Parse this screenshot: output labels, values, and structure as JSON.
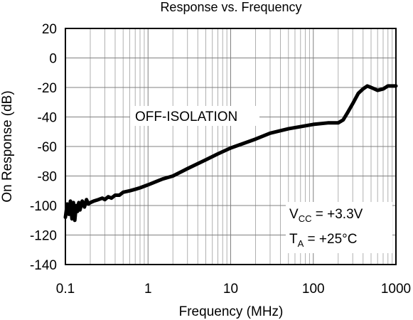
{
  "chart_data": {
    "type": "line",
    "title": "Response vs. Frequency",
    "xlabel": "Frequency (MHz)",
    "ylabel": "On Response (dB)",
    "xscale": "log",
    "xlim": [
      0.1,
      1000
    ],
    "ylim": [
      -140,
      20
    ],
    "xticks": [
      0.1,
      1,
      10,
      100,
      1000
    ],
    "xtick_labels": [
      "0.1",
      "1",
      "10",
      "100",
      "1000"
    ],
    "yticks": [
      20,
      0,
      -20,
      -40,
      -60,
      -80,
      -100,
      -120,
      -140
    ],
    "ytick_labels": [
      "20",
      "0",
      "-20",
      "-40",
      "-60",
      "-80",
      "-100",
      "-120",
      "-140"
    ],
    "grid": true,
    "annotations": {
      "series_label": "OFF-ISOLATION",
      "vcc_main": "V",
      "vcc_sub": "CC",
      "vcc_value": " = +3.3V",
      "ta_main": "T",
      "ta_sub": "A",
      "ta_value": " = +25°C"
    },
    "series": [
      {
        "x": [
          0.1,
          0.105,
          0.11,
          0.115,
          0.12,
          0.125,
          0.13,
          0.135,
          0.14,
          0.145,
          0.15,
          0.16,
          0.17,
          0.18,
          0.19,
          0.2,
          0.22,
          0.25,
          0.28,
          0.3,
          0.33,
          0.36,
          0.4,
          0.45,
          0.5,
          0.6,
          0.7,
          0.8,
          1,
          1.5,
          2,
          3,
          5,
          7,
          10,
          20,
          30,
          50,
          100,
          150,
          200,
          230,
          260,
          300,
          350,
          400,
          450,
          500,
          550,
          600,
          700,
          800,
          900,
          1000
        ],
        "y": [
          -108,
          -99,
          -106,
          -97,
          -109,
          -98,
          -110,
          -100,
          -104,
          -98,
          -103,
          -97,
          -101,
          -96,
          -99,
          -98,
          -97,
          -96,
          -95,
          -96,
          -94,
          -95,
          -93,
          -93,
          -91,
          -90,
          -89,
          -88,
          -86,
          -82,
          -80,
          -75,
          -69,
          -65,
          -61,
          -55,
          -51,
          -48,
          -45,
          -44,
          -44,
          -42,
          -37,
          -31,
          -24,
          -21,
          -19,
          -20,
          -21,
          -22,
          -21,
          -19,
          -19,
          -19
        ]
      }
    ]
  }
}
